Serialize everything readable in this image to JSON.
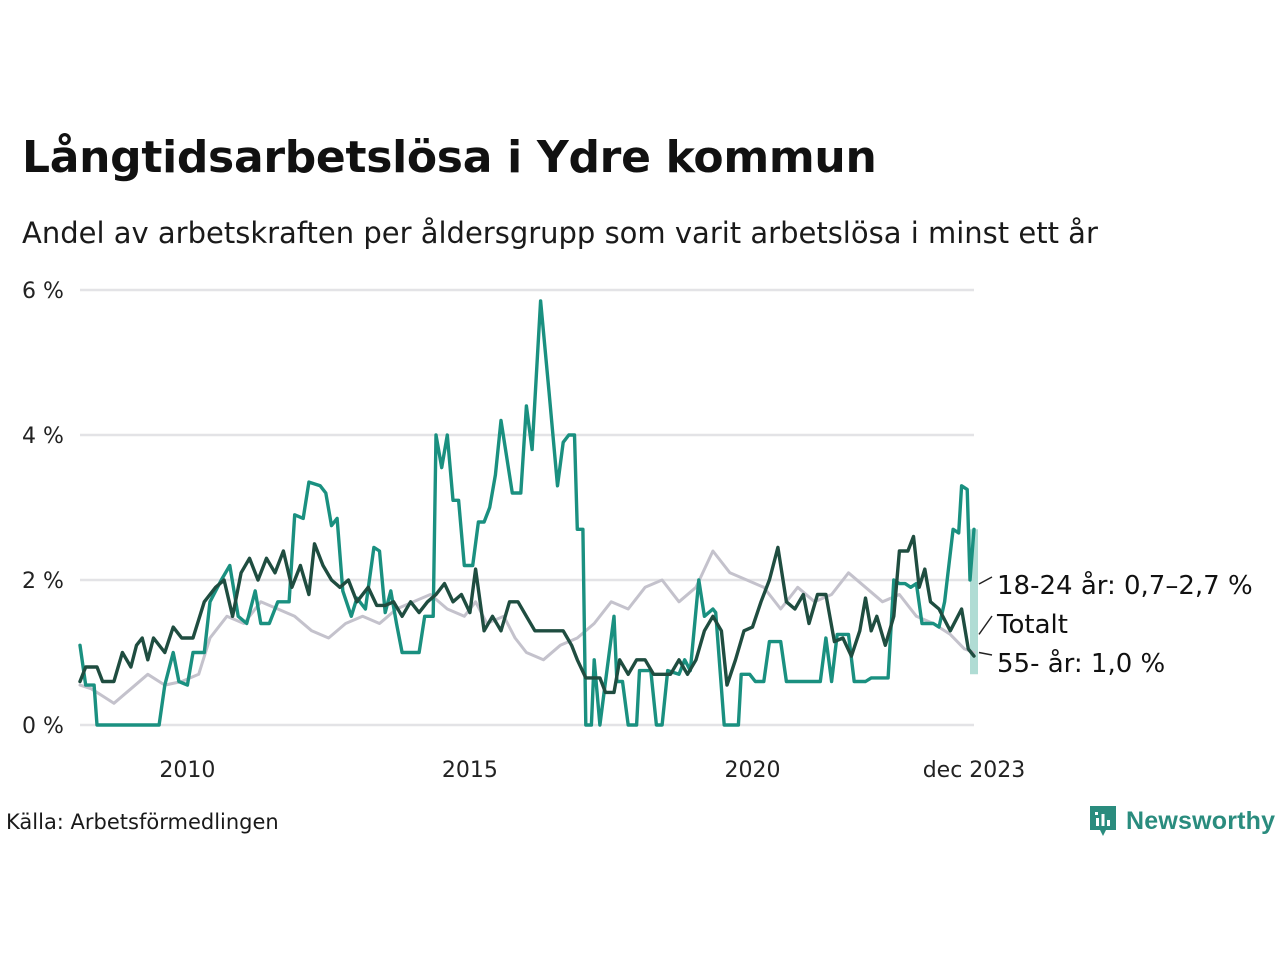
{
  "title": "Långtidsarbetslösa i Ydre kommun",
  "subtitle": "Andel av arbetskraften per åldersgrupp som varit arbetslösa i minst ett år",
  "source": "Källa: Arbetsförmedlingen",
  "brand": "Newsworthy",
  "colors": {
    "young": "#1a9080",
    "total": "#1f4d40",
    "old": "#c4c2cc",
    "grid": "#e3e3e6",
    "band": "#a7d8cf",
    "brand": "#2a8c7e"
  },
  "chart_data": {
    "type": "line",
    "title": "Långtidsarbetslösa i Ydre kommun",
    "xlabel": "",
    "ylabel": "",
    "xlim": [
      2008.1,
      2023.92
    ],
    "ylim": [
      0,
      6
    ],
    "y_ticks": [
      0,
      2,
      4,
      6
    ],
    "y_tick_labels": [
      "0 %",
      "2 %",
      "4 %",
      "6 %"
    ],
    "x_ticks": [
      2010,
      2015,
      2020,
      2023.92
    ],
    "x_tick_labels": [
      "2010",
      "2015",
      "2020",
      "dec 2023"
    ],
    "series": [
      {
        "name": "55- år",
        "label": "55- år: 1,0 %",
        "color": "#c4c2cc",
        "points": [
          [
            2008.1,
            0.55
          ],
          [
            2008.3,
            0.5
          ],
          [
            2008.5,
            0.4
          ],
          [
            2008.7,
            0.3
          ],
          [
            2009.0,
            0.5
          ],
          [
            2009.3,
            0.7
          ],
          [
            2009.6,
            0.55
          ],
          [
            2009.9,
            0.6
          ],
          [
            2010.2,
            0.7
          ],
          [
            2010.4,
            1.2
          ],
          [
            2010.7,
            1.5
          ],
          [
            2011.0,
            1.4
          ],
          [
            2011.3,
            1.7
          ],
          [
            2011.6,
            1.6
          ],
          [
            2011.9,
            1.5
          ],
          [
            2012.2,
            1.3
          ],
          [
            2012.5,
            1.2
          ],
          [
            2012.8,
            1.4
          ],
          [
            2013.1,
            1.5
          ],
          [
            2013.4,
            1.4
          ],
          [
            2013.7,
            1.6
          ],
          [
            2014.0,
            1.7
          ],
          [
            2014.3,
            1.8
          ],
          [
            2014.6,
            1.6
          ],
          [
            2014.9,
            1.5
          ],
          [
            2015.1,
            1.7
          ],
          [
            2015.3,
            1.4
          ],
          [
            2015.6,
            1.5
          ],
          [
            2015.8,
            1.2
          ],
          [
            2016.0,
            1.0
          ],
          [
            2016.3,
            0.9
          ],
          [
            2016.6,
            1.1
          ],
          [
            2016.9,
            1.2
          ],
          [
            2017.2,
            1.4
          ],
          [
            2017.5,
            1.7
          ],
          [
            2017.8,
            1.6
          ],
          [
            2018.1,
            1.9
          ],
          [
            2018.4,
            2.0
          ],
          [
            2018.7,
            1.7
          ],
          [
            2019.0,
            1.9
          ],
          [
            2019.3,
            2.4
          ],
          [
            2019.6,
            2.1
          ],
          [
            2019.9,
            2.0
          ],
          [
            2020.2,
            1.9
          ],
          [
            2020.5,
            1.6
          ],
          [
            2020.8,
            1.9
          ],
          [
            2021.1,
            1.7
          ],
          [
            2021.4,
            1.8
          ],
          [
            2021.7,
            2.1
          ],
          [
            2022.0,
            1.9
          ],
          [
            2022.3,
            1.7
          ],
          [
            2022.6,
            1.8
          ],
          [
            2022.9,
            1.5
          ],
          [
            2023.2,
            1.4
          ],
          [
            2023.5,
            1.25
          ],
          [
            2023.75,
            1.05
          ],
          [
            2023.92,
            1.0
          ]
        ]
      },
      {
        "name": "18-24 år",
        "label": "18-24 år: 0,7–2,7 %",
        "color": "#1a9080",
        "points": [
          [
            2008.1,
            1.1
          ],
          [
            2008.2,
            0.55
          ],
          [
            2008.35,
            0.55
          ],
          [
            2008.4,
            0.0
          ],
          [
            2009.5,
            0.0
          ],
          [
            2009.6,
            0.55
          ],
          [
            2009.75,
            1.0
          ],
          [
            2009.85,
            0.6
          ],
          [
            2010.0,
            0.55
          ],
          [
            2010.1,
            1.0
          ],
          [
            2010.3,
            1.0
          ],
          [
            2010.4,
            1.7
          ],
          [
            2010.6,
            2.0
          ],
          [
            2010.75,
            2.2
          ],
          [
            2010.9,
            1.5
          ],
          [
            2011.05,
            1.4
          ],
          [
            2011.2,
            1.85
          ],
          [
            2011.3,
            1.4
          ],
          [
            2011.45,
            1.4
          ],
          [
            2011.6,
            1.7
          ],
          [
            2011.8,
            1.7
          ],
          [
            2011.9,
            2.9
          ],
          [
            2012.05,
            2.85
          ],
          [
            2012.15,
            3.35
          ],
          [
            2012.35,
            3.3
          ],
          [
            2012.45,
            3.2
          ],
          [
            2012.55,
            2.75
          ],
          [
            2012.65,
            2.85
          ],
          [
            2012.75,
            1.85
          ],
          [
            2012.9,
            1.5
          ],
          [
            2013.0,
            1.75
          ],
          [
            2013.15,
            1.6
          ],
          [
            2013.3,
            2.45
          ],
          [
            2013.4,
            2.4
          ],
          [
            2013.5,
            1.55
          ],
          [
            2013.6,
            1.85
          ],
          [
            2013.7,
            1.4
          ],
          [
            2013.8,
            1.0
          ],
          [
            2014.0,
            1.0
          ],
          [
            2014.1,
            1.0
          ],
          [
            2014.2,
            1.5
          ],
          [
            2014.35,
            1.5
          ],
          [
            2014.4,
            4.0
          ],
          [
            2014.5,
            3.55
          ],
          [
            2014.6,
            4.0
          ],
          [
            2014.7,
            3.1
          ],
          [
            2014.8,
            3.1
          ],
          [
            2014.9,
            2.2
          ],
          [
            2015.05,
            2.2
          ],
          [
            2015.15,
            2.8
          ],
          [
            2015.25,
            2.8
          ],
          [
            2015.35,
            3.0
          ],
          [
            2015.45,
            3.45
          ],
          [
            2015.55,
            4.2
          ],
          [
            2015.75,
            3.2
          ],
          [
            2015.9,
            3.2
          ],
          [
            2016.0,
            4.4
          ],
          [
            2016.1,
            3.8
          ],
          [
            2016.25,
            5.85
          ],
          [
            2016.4,
            4.6
          ],
          [
            2016.55,
            3.3
          ],
          [
            2016.65,
            3.9
          ],
          [
            2016.75,
            4.0
          ],
          [
            2016.85,
            4.0
          ],
          [
            2016.9,
            2.7
          ],
          [
            2017.0,
            2.7
          ],
          [
            2017.05,
            0.0
          ],
          [
            2017.15,
            0.0
          ],
          [
            2017.2,
            0.9
          ],
          [
            2017.3,
            0.0
          ],
          [
            2017.4,
            0.6
          ],
          [
            2017.55,
            1.5
          ],
          [
            2017.6,
            0.6
          ],
          [
            2017.7,
            0.6
          ],
          [
            2017.8,
            0.0
          ],
          [
            2017.95,
            0.0
          ],
          [
            2018.0,
            0.75
          ],
          [
            2018.2,
            0.75
          ],
          [
            2018.3,
            0.0
          ],
          [
            2018.4,
            0.0
          ],
          [
            2018.5,
            0.75
          ],
          [
            2018.7,
            0.7
          ],
          [
            2018.8,
            0.9
          ],
          [
            2018.9,
            0.75
          ],
          [
            2019.05,
            2.0
          ],
          [
            2019.15,
            1.5
          ],
          [
            2019.3,
            1.6
          ],
          [
            2019.35,
            1.55
          ],
          [
            2019.5,
            0.0
          ],
          [
            2019.75,
            0.0
          ],
          [
            2019.8,
            0.7
          ],
          [
            2019.95,
            0.7
          ],
          [
            2020.05,
            0.6
          ],
          [
            2020.2,
            0.6
          ],
          [
            2020.3,
            1.15
          ],
          [
            2020.5,
            1.15
          ],
          [
            2020.6,
            0.6
          ],
          [
            2020.8,
            0.6
          ],
          [
            2021.0,
            0.6
          ],
          [
            2021.2,
            0.6
          ],
          [
            2021.3,
            1.2
          ],
          [
            2021.4,
            0.6
          ],
          [
            2021.5,
            1.25
          ],
          [
            2021.7,
            1.25
          ],
          [
            2021.8,
            0.6
          ],
          [
            2022.0,
            0.6
          ],
          [
            2022.1,
            0.65
          ],
          [
            2022.4,
            0.65
          ],
          [
            2022.5,
            2.0
          ],
          [
            2022.6,
            1.95
          ],
          [
            2022.7,
            1.95
          ],
          [
            2022.8,
            1.9
          ],
          [
            2022.9,
            1.95
          ],
          [
            2023.0,
            1.4
          ],
          [
            2023.2,
            1.4
          ],
          [
            2023.3,
            1.35
          ],
          [
            2023.4,
            1.7
          ],
          [
            2023.55,
            2.7
          ],
          [
            2023.65,
            2.65
          ],
          [
            2023.7,
            3.3
          ],
          [
            2023.8,
            3.25
          ],
          [
            2023.85,
            2.0
          ],
          [
            2023.92,
            2.7
          ]
        ]
      },
      {
        "name": "Totalt",
        "label": "Totalt",
        "color": "#1f4d40",
        "points": [
          [
            2008.1,
            0.6
          ],
          [
            2008.2,
            0.8
          ],
          [
            2008.4,
            0.8
          ],
          [
            2008.5,
            0.6
          ],
          [
            2008.7,
            0.6
          ],
          [
            2008.85,
            1.0
          ],
          [
            2009.0,
            0.8
          ],
          [
            2009.1,
            1.1
          ],
          [
            2009.2,
            1.2
          ],
          [
            2009.3,
            0.9
          ],
          [
            2009.4,
            1.2
          ],
          [
            2009.6,
            1.0
          ],
          [
            2009.75,
            1.35
          ],
          [
            2009.9,
            1.2
          ],
          [
            2010.1,
            1.2
          ],
          [
            2010.3,
            1.7
          ],
          [
            2010.5,
            1.9
          ],
          [
            2010.65,
            2.0
          ],
          [
            2010.8,
            1.5
          ],
          [
            2010.95,
            2.1
          ],
          [
            2011.1,
            2.3
          ],
          [
            2011.25,
            2.0
          ],
          [
            2011.4,
            2.3
          ],
          [
            2011.55,
            2.1
          ],
          [
            2011.7,
            2.4
          ],
          [
            2011.85,
            1.9
          ],
          [
            2012.0,
            2.2
          ],
          [
            2012.15,
            1.8
          ],
          [
            2012.25,
            2.5
          ],
          [
            2012.4,
            2.2
          ],
          [
            2012.55,
            2.0
          ],
          [
            2012.7,
            1.9
          ],
          [
            2012.85,
            2.0
          ],
          [
            2013.0,
            1.7
          ],
          [
            2013.2,
            1.9
          ],
          [
            2013.35,
            1.65
          ],
          [
            2013.5,
            1.65
          ],
          [
            2013.65,
            1.7
          ],
          [
            2013.8,
            1.5
          ],
          [
            2013.95,
            1.7
          ],
          [
            2014.1,
            1.55
          ],
          [
            2014.25,
            1.7
          ],
          [
            2014.4,
            1.8
          ],
          [
            2014.55,
            1.95
          ],
          [
            2014.7,
            1.7
          ],
          [
            2014.85,
            1.8
          ],
          [
            2015.0,
            1.55
          ],
          [
            2015.1,
            2.15
          ],
          [
            2015.25,
            1.3
          ],
          [
            2015.4,
            1.5
          ],
          [
            2015.55,
            1.3
          ],
          [
            2015.7,
            1.7
          ],
          [
            2015.85,
            1.7
          ],
          [
            2016.0,
            1.5
          ],
          [
            2016.15,
            1.3
          ],
          [
            2016.4,
            1.3
          ],
          [
            2016.65,
            1.3
          ],
          [
            2016.8,
            1.1
          ],
          [
            2016.9,
            0.9
          ],
          [
            2017.05,
            0.65
          ],
          [
            2017.3,
            0.65
          ],
          [
            2017.4,
            0.45
          ],
          [
            2017.55,
            0.45
          ],
          [
            2017.65,
            0.9
          ],
          [
            2017.8,
            0.7
          ],
          [
            2017.95,
            0.9
          ],
          [
            2018.1,
            0.9
          ],
          [
            2018.25,
            0.7
          ],
          [
            2018.4,
            0.7
          ],
          [
            2018.55,
            0.7
          ],
          [
            2018.7,
            0.9
          ],
          [
            2018.85,
            0.7
          ],
          [
            2019.0,
            0.9
          ],
          [
            2019.15,
            1.3
          ],
          [
            2019.3,
            1.5
          ],
          [
            2019.45,
            1.3
          ],
          [
            2019.55,
            0.55
          ],
          [
            2019.7,
            0.9
          ],
          [
            2019.85,
            1.3
          ],
          [
            2020.0,
            1.35
          ],
          [
            2020.15,
            1.7
          ],
          [
            2020.3,
            2.0
          ],
          [
            2020.45,
            2.45
          ],
          [
            2020.6,
            1.7
          ],
          [
            2020.75,
            1.6
          ],
          [
            2020.9,
            1.8
          ],
          [
            2021.0,
            1.4
          ],
          [
            2021.15,
            1.8
          ],
          [
            2021.3,
            1.8
          ],
          [
            2021.45,
            1.15
          ],
          [
            2021.6,
            1.2
          ],
          [
            2021.75,
            0.95
          ],
          [
            2021.9,
            1.3
          ],
          [
            2022.0,
            1.75
          ],
          [
            2022.1,
            1.3
          ],
          [
            2022.2,
            1.5
          ],
          [
            2022.35,
            1.1
          ],
          [
            2022.5,
            1.5
          ],
          [
            2022.6,
            2.4
          ],
          [
            2022.75,
            2.4
          ],
          [
            2022.85,
            2.6
          ],
          [
            2022.95,
            1.9
          ],
          [
            2023.05,
            2.15
          ],
          [
            2023.15,
            1.7
          ],
          [
            2023.3,
            1.6
          ],
          [
            2023.5,
            1.3
          ],
          [
            2023.7,
            1.6
          ],
          [
            2023.82,
            1.05
          ],
          [
            2023.92,
            0.95
          ]
        ]
      }
    ],
    "band": {
      "series": "18-24 år",
      "x": 2023.92,
      "low": 0.7,
      "high": 2.7
    },
    "end_labels": [
      "18-24 år: 0,7–2,7 %",
      "Totalt",
      "55- år: 1,0 %"
    ]
  }
}
